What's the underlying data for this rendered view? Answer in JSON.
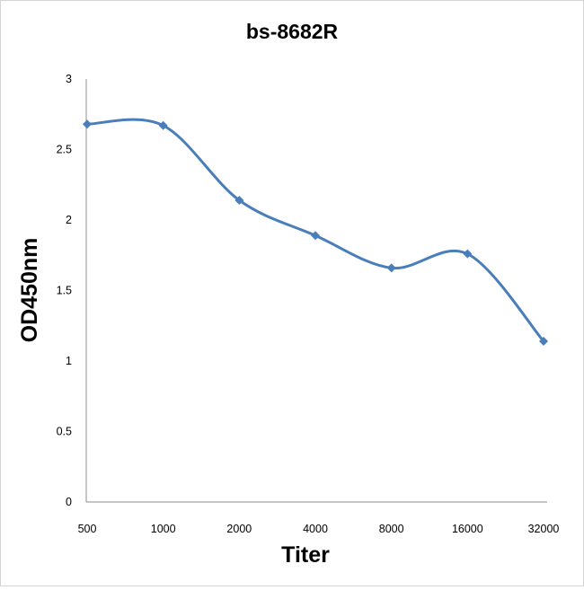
{
  "chart_data": {
    "type": "line",
    "title": "bs-8682R",
    "xlabel": "Titer",
    "ylabel": "OD450nm",
    "categories": [
      "500",
      "1000",
      "2000",
      "4000",
      "8000",
      "16000",
      "32000"
    ],
    "series": [
      {
        "name": "bs-8682R",
        "values": [
          2.68,
          2.67,
          2.14,
          1.89,
          1.66,
          1.76,
          1.14
        ],
        "color": "#4a7ebb"
      }
    ],
    "ylim": [
      0,
      3
    ],
    "yticks": [
      "0",
      "0.5",
      "1",
      "1.5",
      "2",
      "2.5",
      "3"
    ],
    "grid": false,
    "smooth": true
  }
}
